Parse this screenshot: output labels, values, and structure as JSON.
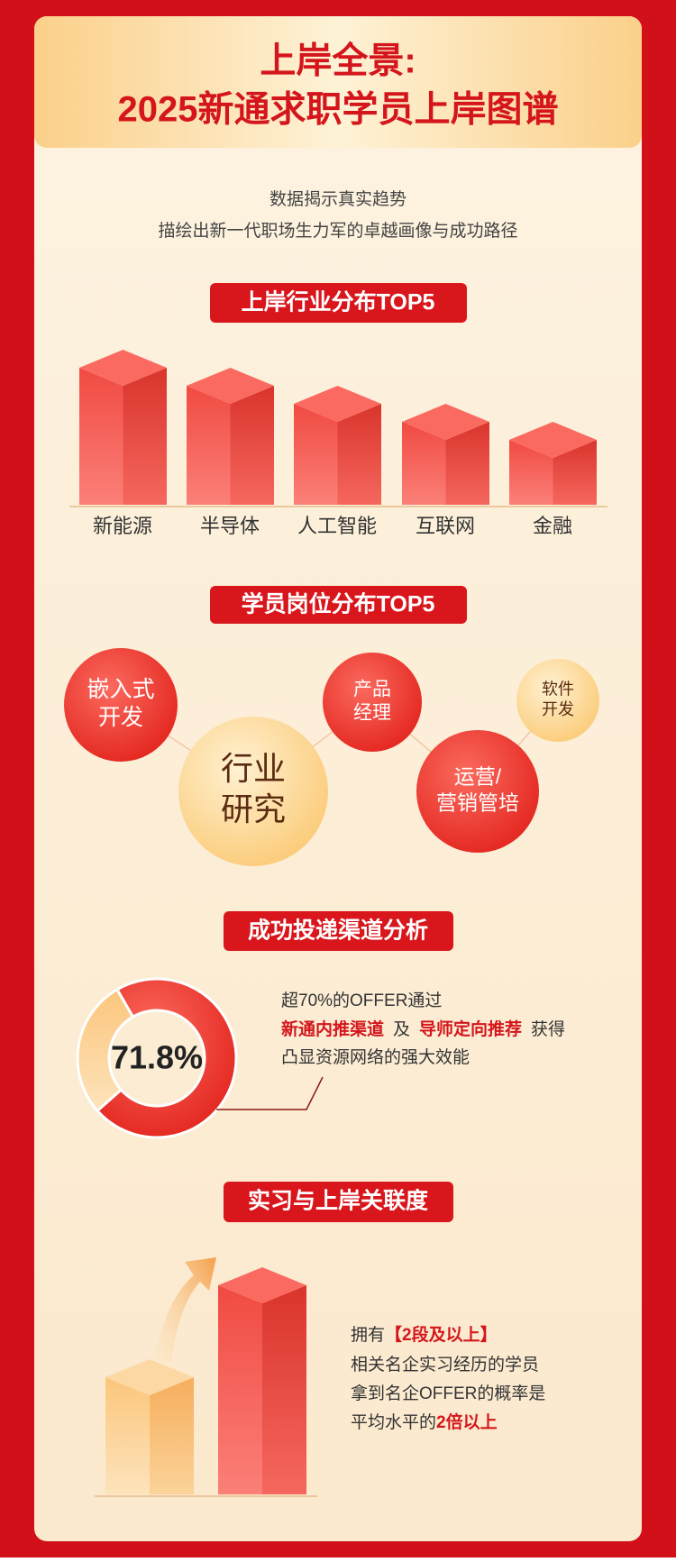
{
  "header": {
    "title_line1": "上岸全景:",
    "title_line2": "2025新通求职学员上岸图谱"
  },
  "intro": [
    "数据揭示真实趋势",
    "描绘出新一代职场生力军的卓越画像与成功路径"
  ],
  "industry": {
    "title": "上岸行业分布TOP5",
    "categories": [
      "新能源",
      "半导体",
      "人工智能",
      "互联网",
      "金融"
    ]
  },
  "positions": {
    "title": "学员岗位分布TOP5",
    "items": [
      [
        "嵌入式",
        "开发"
      ],
      [
        "行业",
        "研究"
      ],
      [
        "产品",
        "经理"
      ],
      [
        "运营/",
        "营销管培"
      ],
      [
        "软件",
        "开发"
      ]
    ]
  },
  "channel": {
    "title": "成功投递渠道分析",
    "percent": 71.8,
    "percent_label": "71.8%",
    "line1": "超70%的OFFER通过",
    "line2": [
      "新通内推渠道",
      "及",
      "导师定向推荐",
      "获得"
    ],
    "line3": "凸显资源网络的强大效能"
  },
  "internship": {
    "title": "实习与上岸关联度",
    "line1": [
      "拥有",
      "【2段及以上】"
    ],
    "line2": "相关名企实习经历的学员",
    "line3": "拿到名企OFFER的概率是",
    "line4": [
      "平均水平的",
      "2倍以上"
    ]
  }
}
